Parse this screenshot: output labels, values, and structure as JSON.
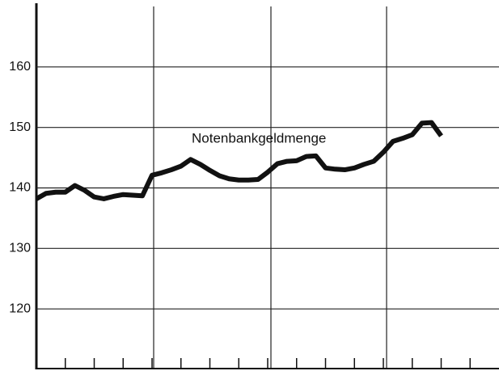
{
  "chart_data": {
    "type": "line",
    "annotation": "Notenbankgeldmenge",
    "categories": [
      null,
      null,
      null,
      null,
      null,
      null,
      null,
      null,
      null,
      null,
      null,
      null,
      null,
      null,
      null,
      null,
      null,
      null,
      null,
      null,
      null,
      null,
      null,
      null,
      null,
      null,
      null,
      null,
      null,
      null,
      null,
      null,
      null,
      null,
      null,
      null,
      null,
      null,
      null,
      null,
      null,
      null,
      null,
      null,
      null,
      null,
      null,
      null
    ],
    "series": [
      {
        "name": "Notenbankgeldmenge",
        "color": "#111111",
        "values": [
          138.2,
          139.1,
          139.3,
          139.3,
          140.4,
          139.6,
          138.5,
          138.2,
          138.6,
          138.9,
          138.8,
          138.7,
          142.1,
          142.5,
          143.0,
          143.6,
          144.7,
          143.9,
          142.9,
          142.0,
          141.5,
          141.3,
          141.3,
          141.4,
          142.6,
          144.0,
          144.4,
          144.5,
          145.2,
          145.3,
          143.3,
          143.1,
          143.0,
          143.3,
          143.9,
          144.4,
          145.9,
          147.7,
          148.2,
          148.8,
          150.7,
          150.8,
          148.6,
          null,
          null,
          null,
          null,
          null
        ]
      }
    ],
    "ylim": [
      110,
      170
    ],
    "yticks": [
      120,
      130,
      140,
      150,
      160
    ],
    "grid": true
  }
}
